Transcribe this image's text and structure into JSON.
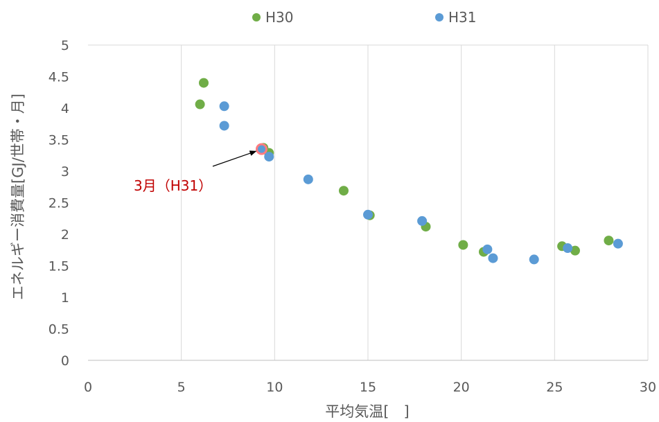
{
  "chart_data": {
    "type": "scatter",
    "xlabel": "平均気温[　]",
    "ylabel": "エネルギー消費量[GJ/世帯・月]",
    "xlim": [
      0,
      30
    ],
    "ylim": [
      0,
      5
    ],
    "x_ticks": [
      0,
      5,
      10,
      15,
      20,
      25,
      30
    ],
    "y_ticks": [
      0,
      0.5,
      1,
      1.5,
      2,
      2.5,
      3,
      3.5,
      4,
      4.5,
      5
    ],
    "x_tick_labels": [
      "0",
      "5",
      "10",
      "15",
      "20",
      "25",
      "30"
    ],
    "y_tick_labels": [
      "0",
      "0.5",
      "1",
      "1.5",
      "2",
      "2.5",
      "3",
      "3.5",
      "4",
      "4.5",
      "5"
    ],
    "grid": "vertical",
    "legend_position": "top",
    "series": [
      {
        "name": "H30",
        "color": "#70ad47",
        "points": [
          [
            6.2,
            4.4
          ],
          [
            6.0,
            4.06
          ],
          [
            9.4,
            3.37
          ],
          [
            9.7,
            3.29
          ],
          [
            13.7,
            2.69
          ],
          [
            15.1,
            2.3
          ],
          [
            18.1,
            2.12
          ],
          [
            20.1,
            1.83
          ],
          [
            21.2,
            1.72
          ],
          [
            25.4,
            1.81
          ],
          [
            26.1,
            1.74
          ],
          [
            27.9,
            1.9
          ]
        ]
      },
      {
        "name": "H31",
        "color": "#5b9bd5",
        "points": [
          [
            7.3,
            4.03
          ],
          [
            7.3,
            3.72
          ],
          [
            9.3,
            3.35
          ],
          [
            9.7,
            3.23
          ],
          [
            11.8,
            2.87
          ],
          [
            15.0,
            2.31
          ],
          [
            17.9,
            2.21
          ],
          [
            21.4,
            1.76
          ],
          [
            21.7,
            1.62
          ],
          [
            23.9,
            1.6
          ],
          [
            25.7,
            1.78
          ],
          [
            28.4,
            1.85
          ]
        ]
      }
    ],
    "annotation": {
      "text": "3月（H31）",
      "color": "#c00000",
      "target": [
        9.3,
        3.35
      ],
      "highlight_color": "#ff7c80"
    }
  }
}
